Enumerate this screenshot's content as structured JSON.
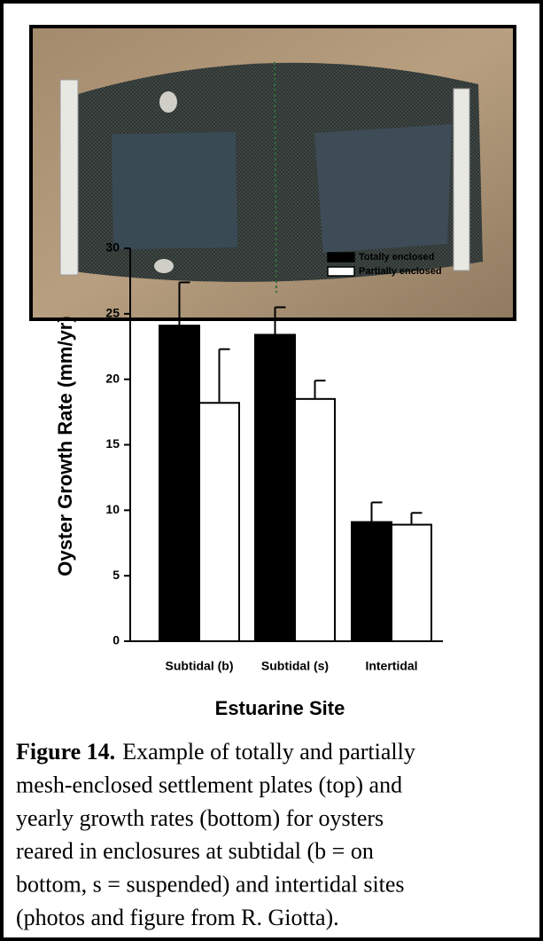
{
  "chart_data": {
    "type": "bar",
    "y_label": "Oyster Growth Rate (mm/yr)",
    "x_label": "Estuarine Site",
    "categories": [
      "Subtidal (b)",
      "Subtidal (s)",
      "Intertidal"
    ],
    "series": [
      {
        "name": "Totally enclosed",
        "color": "#000000",
        "values": [
          24.1,
          23.4,
          9.1
        ],
        "errors": [
          3.3,
          2.1,
          1.5
        ]
      },
      {
        "name": "Partially enclosed",
        "color": "#ffffff",
        "values": [
          18.2,
          18.5,
          8.9
        ],
        "errors": [
          4.1,
          1.4,
          0.9
        ]
      }
    ],
    "ylim": [
      0,
      30
    ],
    "yticks": [
      0,
      5,
      10,
      15,
      20,
      25,
      30
    ],
    "grid": false,
    "legend": "top-right"
  },
  "caption": {
    "label": "Figure 14.",
    "lines": [
      "Example of totally and partially",
      "mesh-enclosed settlement plates (top) and",
      "yearly growth rates (bottom) for oysters",
      "reared in enclosures at subtidal (b = on",
      "bottom, s = suspended) and intertidal sites",
      "(photos and figure from R. Giotta)."
    ]
  }
}
